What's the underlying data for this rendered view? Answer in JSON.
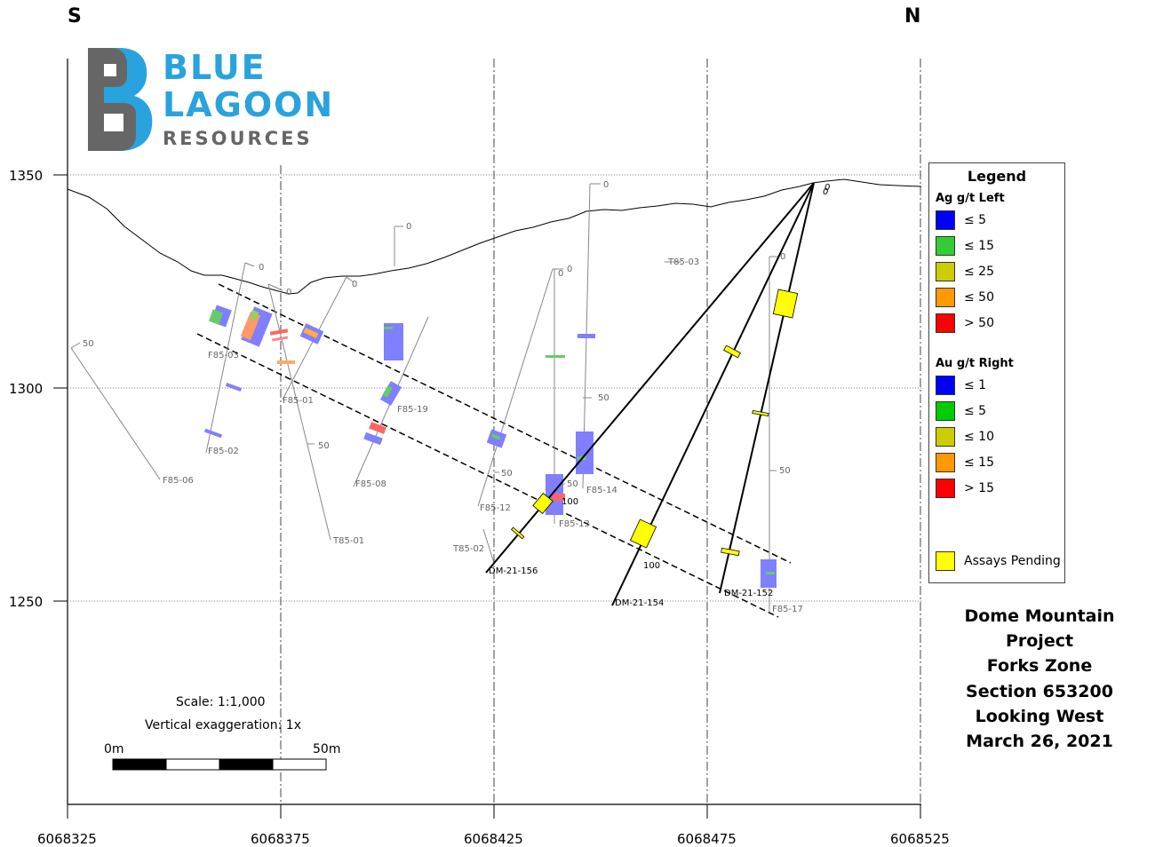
{
  "directions": {
    "left": "S",
    "right": "N"
  },
  "logo": {
    "line1": "BLUE",
    "line2": "LAGOON",
    "line3": "RESOURCES"
  },
  "axes": {
    "y_ticks": [
      "1350",
      "1300",
      "1250"
    ],
    "x_ticks": [
      "6068325",
      "6068375",
      "6068425",
      "6068475",
      "6068525"
    ]
  },
  "historic_holes": [
    {
      "name": "F85-03",
      "top_label": "0",
      "mid_label": ""
    },
    {
      "name": "F85-02",
      "top_label": "",
      "mid_label": ""
    },
    {
      "name": "F85-06",
      "top_label": "",
      "mid_label": "50"
    },
    {
      "name": "F85-01",
      "top_label": "0",
      "mid_label": ""
    },
    {
      "name": "T85-01",
      "top_label": "0",
      "mid_label": "50"
    },
    {
      "name": "F85-08",
      "top_label": "0",
      "mid_label": ""
    },
    {
      "name": "F85-19",
      "top_label": "0",
      "mid_label": ""
    },
    {
      "name": "F85-12",
      "top_label": "0",
      "mid_label": "50"
    },
    {
      "name": "T85-02",
      "top_label": "",
      "mid_label": ""
    },
    {
      "name": "F85-13",
      "top_label": "0",
      "mid_label": "50"
    },
    {
      "name": "F85-14",
      "top_label": "0",
      "mid_label": "50"
    },
    {
      "name": "T85-03",
      "top_label": "",
      "mid_label": ""
    },
    {
      "name": "F85-17",
      "top_label": "0",
      "mid_label": "50"
    }
  ],
  "drill_holes": [
    {
      "name": "DM-21-156",
      "depth_label": "100"
    },
    {
      "name": "DM-21-154",
      "depth_label": "100"
    },
    {
      "name": "DM-21-152",
      "depth_label": ""
    }
  ],
  "collar_labels": [
    "0",
    "0"
  ],
  "legend": {
    "title": "Legend",
    "ag_title": "Ag g/t Left",
    "ag_items": [
      {
        "label": "≤ 5",
        "color": "#0000ff"
      },
      {
        "label": "≤ 15",
        "color": "#33cc33"
      },
      {
        "label": "≤ 25",
        "color": "#cccc00"
      },
      {
        "label": "≤ 50",
        "color": "#ff9900"
      },
      {
        "label": "> 50",
        "color": "#ff0000"
      }
    ],
    "au_title": "Au g/t Right",
    "au_items": [
      {
        "label": "≤ 1",
        "color": "#0000ff"
      },
      {
        "label": "≤ 5",
        "color": "#00cc00"
      },
      {
        "label": "≤ 10",
        "color": "#cccc00"
      },
      {
        "label": "≤ 15",
        "color": "#ff9900"
      },
      {
        "label": "> 15",
        "color": "#ff0000"
      }
    ],
    "pending_label": "Assays Pending",
    "pending_color": "#ffff00"
  },
  "project": {
    "line1": "Dome Mountain Project",
    "line2": "Forks Zone"
  },
  "section": {
    "line1": "Section 653200",
    "line2": "Looking West",
    "line3": "March 26, 2021"
  },
  "scale": {
    "scale_text": "Scale: 1:1,000",
    "exaggeration_text": "Vertical exaggeration: 1x",
    "left_label": "0m",
    "right_label": "50m"
  },
  "colors": {
    "logo_blue": "#29a3dd",
    "logo_grey": "#666666",
    "intercept_blue": "#7f7fff"
  }
}
